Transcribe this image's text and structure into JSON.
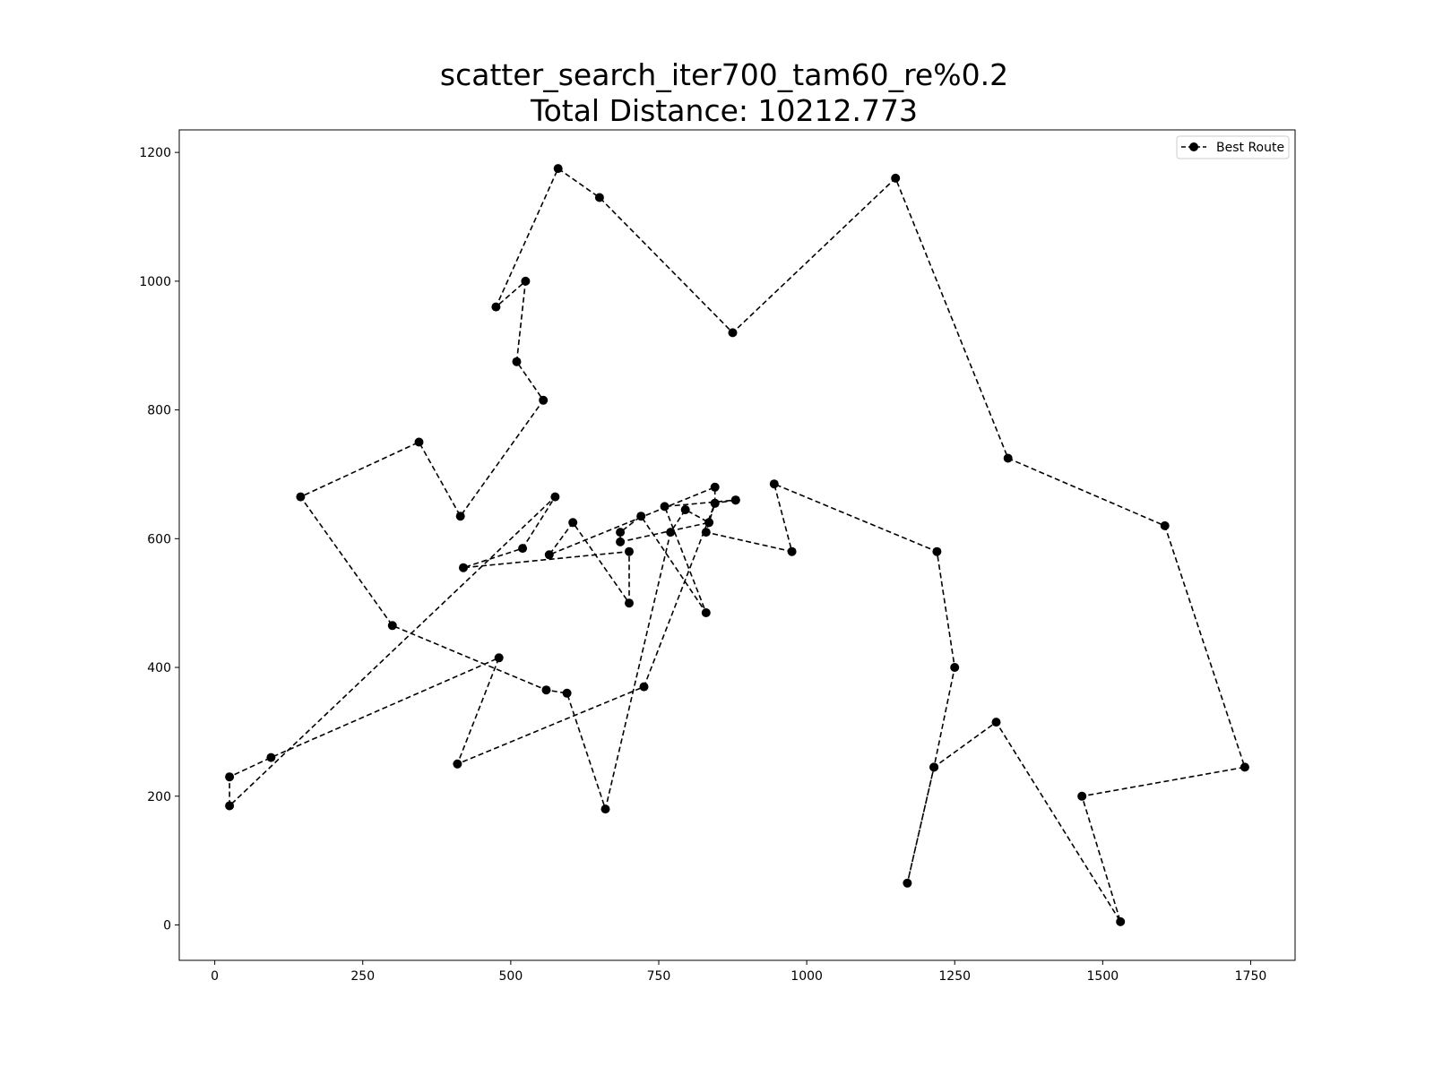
{
  "chart_data": {
    "type": "line",
    "title_line1": "scatter_search_iter700_tam60_re%0.2",
    "title_line2": "Total Distance: 10212.773",
    "xlabel": "",
    "ylabel": "",
    "xlim": [
      -60,
      1825
    ],
    "ylim": [
      -55,
      1235
    ],
    "xticks": [
      0,
      250,
      500,
      750,
      1000,
      1250,
      1500,
      1750
    ],
    "yticks": [
      0,
      200,
      400,
      600,
      800,
      1000,
      1200
    ],
    "grid": false,
    "legend_position": "upper right",
    "series": [
      {
        "name": "Best Route",
        "color": "#000000",
        "line_style": "dashed",
        "marker": "circle",
        "points": [
          [
            880,
            660
          ],
          [
            845,
            655
          ],
          [
            725,
            370
          ],
          [
            410,
            250
          ],
          [
            480,
            415
          ],
          [
            95,
            260
          ],
          [
            25,
            230
          ],
          [
            25,
            185
          ],
          [
            575,
            665
          ],
          [
            520,
            585
          ],
          [
            420,
            555
          ],
          [
            700,
            580
          ],
          [
            700,
            500
          ],
          [
            605,
            625
          ],
          [
            565,
            575
          ],
          [
            845,
            680
          ],
          [
            845,
            655
          ],
          [
            830,
            610
          ],
          [
            975,
            580
          ],
          [
            945,
            685
          ],
          [
            1220,
            580
          ],
          [
            1250,
            400
          ],
          [
            1215,
            245
          ],
          [
            1170,
            65
          ],
          [
            1215,
            245
          ],
          [
            1320,
            315
          ],
          [
            1530,
            5
          ],
          [
            1465,
            200
          ],
          [
            1740,
            245
          ],
          [
            1605,
            620
          ],
          [
            1340,
            725
          ],
          [
            1150,
            1160
          ],
          [
            875,
            920
          ],
          [
            650,
            1130
          ],
          [
            580,
            1175
          ],
          [
            475,
            960
          ],
          [
            525,
            1000
          ],
          [
            510,
            875
          ],
          [
            555,
            815
          ],
          [
            415,
            635
          ],
          [
            345,
            750
          ],
          [
            145,
            665
          ],
          [
            300,
            465
          ],
          [
            560,
            365
          ],
          [
            595,
            360
          ],
          [
            660,
            180
          ],
          [
            770,
            610
          ],
          [
            795,
            645
          ],
          [
            835,
            625
          ],
          [
            685,
            595
          ],
          [
            685,
            610
          ],
          [
            720,
            635
          ],
          [
            830,
            485
          ],
          [
            760,
            650
          ],
          [
            880,
            660
          ]
        ]
      }
    ]
  }
}
